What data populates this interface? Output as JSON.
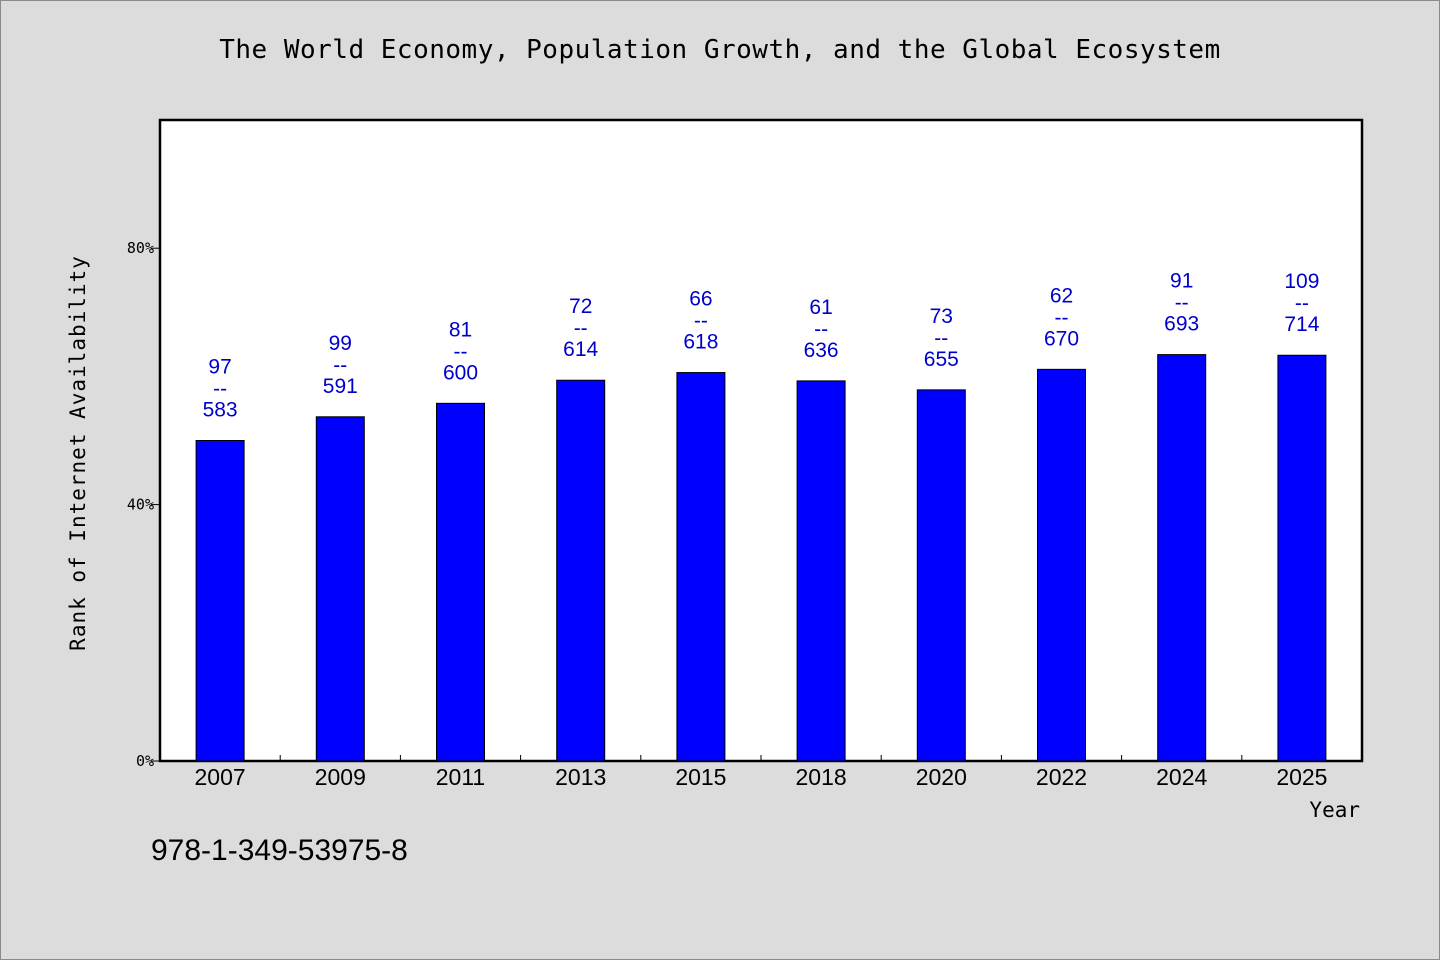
{
  "chart_data": {
    "type": "bar",
    "title": "The World Economy, Population Growth, and the Global Ecosystem",
    "xlabel": "Year",
    "ylabel": "Rank of Internet Availability",
    "categories": [
      "2007",
      "2009",
      "2011",
      "2013",
      "2015",
      "2018",
      "2020",
      "2022",
      "2024",
      "2025"
    ],
    "values": [
      50,
      53.7,
      55.8,
      59.4,
      60.6,
      59.3,
      57.9,
      61.1,
      63.4,
      63.3
    ],
    "data_labels": [
      {
        "top": "97",
        "sep": "--",
        "bottom": "583"
      },
      {
        "top": "99",
        "sep": "--",
        "bottom": "591"
      },
      {
        "top": "81",
        "sep": "--",
        "bottom": "600"
      },
      {
        "top": "72",
        "sep": "--",
        "bottom": "614"
      },
      {
        "top": "66",
        "sep": "--",
        "bottom": "618"
      },
      {
        "top": "61",
        "sep": "--",
        "bottom": "636"
      },
      {
        "top": "73",
        "sep": "--",
        "bottom": "655"
      },
      {
        "top": "62",
        "sep": "--",
        "bottom": "670"
      },
      {
        "top": "91",
        "sep": "--",
        "bottom": "693"
      },
      {
        "top": "109",
        "sep": "--",
        "bottom": "714"
      }
    ],
    "yticks": [
      0,
      40,
      80
    ],
    "ytick_labels": [
      "0%",
      "40%",
      "80%"
    ],
    "ylim": [
      0,
      100
    ],
    "grid": false,
    "colors": {
      "bar": "#0000ff",
      "label": "#0000cc",
      "background": "#dcdcdc",
      "plot": "#ffffff"
    }
  },
  "footer": {
    "isbn": "978-1-349-53975-8"
  }
}
